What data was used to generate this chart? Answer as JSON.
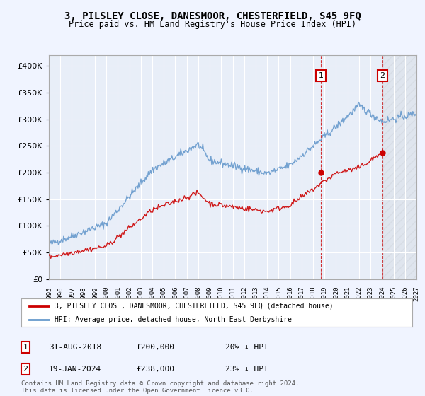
{
  "title": "3, PILSLEY CLOSE, DANESMOOR, CHESTERFIELD, S45 9FQ",
  "subtitle": "Price paid vs. HM Land Registry's House Price Index (HPI)",
  "ylim": [
    0,
    420000
  ],
  "yticks": [
    0,
    50000,
    100000,
    150000,
    200000,
    250000,
    300000,
    350000,
    400000
  ],
  "ytick_labels": [
    "£0",
    "£50K",
    "£100K",
    "£150K",
    "£200K",
    "£250K",
    "£300K",
    "£350K",
    "£400K"
  ],
  "background_color": "#f0f4ff",
  "plot_bg_color": "#e8eef8",
  "grid_color": "#ffffff",
  "sale1_date": 2018.67,
  "sale1_price": 200000,
  "sale1_label": "1",
  "sale2_date": 2024.05,
  "sale2_price": 238000,
  "sale2_label": "2",
  "sale_color": "#cc0000",
  "hpi_color": "#6699cc",
  "legend_entry1": "3, PILSLEY CLOSE, DANESMOOR, CHESTERFIELD, S45 9FQ (detached house)",
  "legend_entry2": "HPI: Average price, detached house, North East Derbyshire",
  "annotation1_date": "31-AUG-2018",
  "annotation1_price": "£200,000",
  "annotation1_hpi": "20% ↓ HPI",
  "annotation2_date": "19-JAN-2024",
  "annotation2_price": "£238,000",
  "annotation2_hpi": "23% ↓ HPI",
  "footer": "Contains HM Land Registry data © Crown copyright and database right 2024.\nThis data is licensed under the Open Government Licence v3.0.",
  "xmin": 1995,
  "xmax": 2027
}
